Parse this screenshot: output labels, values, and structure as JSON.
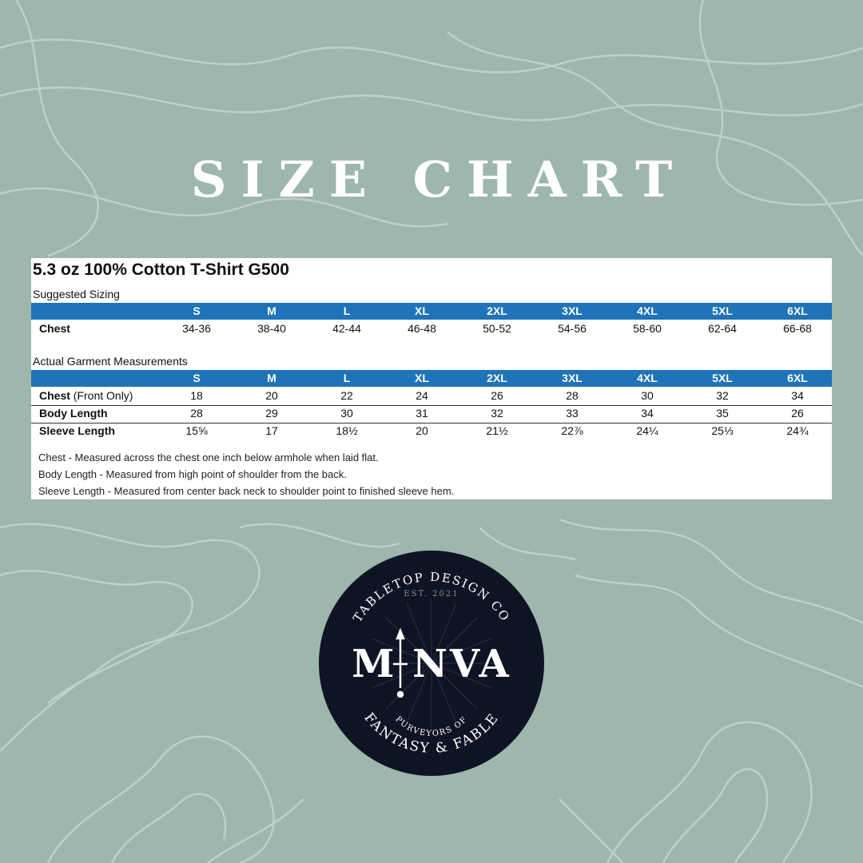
{
  "headline": "SIZE CHART",
  "product_title": "5.3 oz 100% Cotton T-Shirt G500",
  "suggested": {
    "label": "Suggested Sizing",
    "sizes": [
      "S",
      "M",
      "L",
      "XL",
      "2XL",
      "3XL",
      "4XL",
      "5XL",
      "6XL"
    ],
    "chest_label": "Chest",
    "chest": [
      "34-36",
      "38-40",
      "42-44",
      "46-48",
      "50-52",
      "54-56",
      "58-60",
      "62-64",
      "66-68"
    ]
  },
  "actual": {
    "label": "Actual Garment Measurements",
    "sizes": [
      "S",
      "M",
      "L",
      "XL",
      "2XL",
      "3XL",
      "4XL",
      "5XL",
      "6XL"
    ],
    "rows": [
      {
        "label": "Chest",
        "sub": " (Front Only)",
        "values": [
          "18",
          "20",
          "22",
          "24",
          "26",
          "28",
          "30",
          "32",
          "34"
        ]
      },
      {
        "label": "Body Length",
        "sub": "",
        "values": [
          "28",
          "29",
          "30",
          "31",
          "32",
          "33",
          "34",
          "35",
          "26"
        ]
      },
      {
        "label": "Sleeve Length",
        "sub": "",
        "values": [
          "15⅝",
          "17",
          "18½",
          "20",
          "21½",
          "22⅞",
          "24¼",
          "25⅓",
          "24¾"
        ]
      }
    ]
  },
  "notes": [
    "Chest - Measured across the chest one inch below armhole when laid flat.",
    "Body Length - Measured from high point of shoulder from the back.",
    "Sleeve Length - Measured from center back neck to shoulder point to finished sleeve hem."
  ],
  "logo": {
    "arc_top": "TABLETOP DESIGN CO",
    "est": "EST. 2021",
    "brand": "M NVA",
    "tagline_small": "PURVEYORS OF",
    "tagline": "FANTASY & FABLE"
  },
  "colors": {
    "background": "#9db7ac",
    "header_blue": "#1f73b8",
    "logo_dark": "#0f1424",
    "est_green": "#7a9a8a"
  }
}
